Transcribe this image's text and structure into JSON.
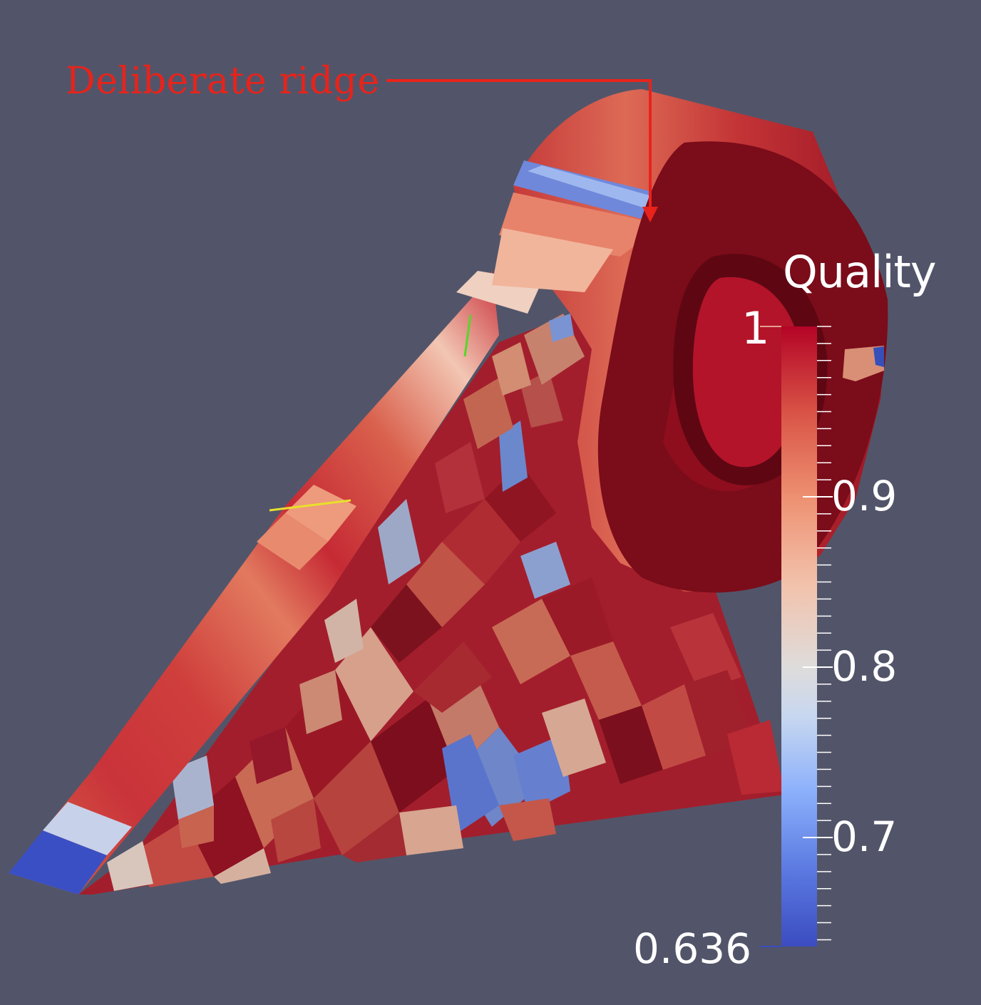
{
  "annotation": {
    "text": "Deliberate ridge",
    "color": "#e8231b"
  },
  "colorbar": {
    "title": "Quality",
    "max_label": "1",
    "min_label": "0.636",
    "range": [
      0.636,
      1
    ],
    "ticks": [
      {
        "value": 0.9,
        "label": "0.9"
      },
      {
        "value": 0.8,
        "label": "0.8"
      },
      {
        "value": 0.7,
        "label": "0.7"
      }
    ],
    "colors": [
      "#3b4cc0",
      "#6a8bef",
      "#aac7fd",
      "#dddcdc",
      "#f4b497",
      "#e7745b",
      "#c3263b",
      "#b40426"
    ]
  },
  "colors": {
    "background": "#525569",
    "mesh_dark_red": "#7a0e1c",
    "mesh_red": "#b81c2c",
    "low_quality_blue": "#4a6fd6"
  }
}
